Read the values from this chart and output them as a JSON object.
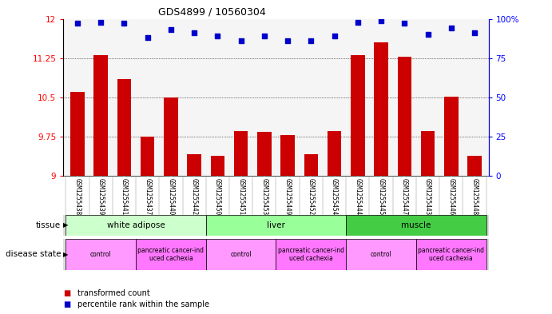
{
  "title": "GDS4899 / 10560304",
  "samples": [
    "GSM1255438",
    "GSM1255439",
    "GSM1255441",
    "GSM1255437",
    "GSM1255440",
    "GSM1255442",
    "GSM1255450",
    "GSM1255451",
    "GSM1255453",
    "GSM1255449",
    "GSM1255452",
    "GSM1255454",
    "GSM1255444",
    "GSM1255445",
    "GSM1255447",
    "GSM1255443",
    "GSM1255446",
    "GSM1255448"
  ],
  "bar_values": [
    10.6,
    11.3,
    10.85,
    9.75,
    10.5,
    9.42,
    9.38,
    9.85,
    9.84,
    9.78,
    9.42,
    9.85,
    11.3,
    11.55,
    11.27,
    9.85,
    10.52,
    9.38
  ],
  "dot_values": [
    97,
    98,
    97,
    88,
    93,
    91,
    89,
    86,
    89,
    86,
    86,
    89,
    98,
    99,
    97,
    90,
    94,
    91
  ],
  "ylim_left": [
    9,
    12
  ],
  "ylim_right": [
    0,
    100
  ],
  "yticks_left": [
    9,
    9.75,
    10.5,
    11.25,
    12
  ],
  "yticks_right": [
    0,
    25,
    50,
    75,
    100
  ],
  "bar_color": "#cc0000",
  "dot_color": "#0000cc",
  "tissue_groups": [
    {
      "label": "white adipose",
      "start": 0,
      "end": 5,
      "color": "#ccffcc"
    },
    {
      "label": "liver",
      "start": 6,
      "end": 11,
      "color": "#99ff99"
    },
    {
      "label": "muscle",
      "start": 12,
      "end": 17,
      "color": "#44cc44"
    }
  ],
  "disease_groups": [
    {
      "label": "control",
      "start": 0,
      "end": 2,
      "color": "#ff99ff"
    },
    {
      "label": "pancreatic cancer-ind\nuced cachexia",
      "start": 3,
      "end": 5,
      "color": "#ff77ff"
    },
    {
      "label": "control",
      "start": 6,
      "end": 8,
      "color": "#ff99ff"
    },
    {
      "label": "pancreatic cancer-ind\nuced cachexia",
      "start": 9,
      "end": 11,
      "color": "#ff77ff"
    },
    {
      "label": "control",
      "start": 12,
      "end": 14,
      "color": "#ff99ff"
    },
    {
      "label": "pancreatic cancer-ind\nuced cachexia",
      "start": 15,
      "end": 17,
      "color": "#ff77ff"
    }
  ]
}
